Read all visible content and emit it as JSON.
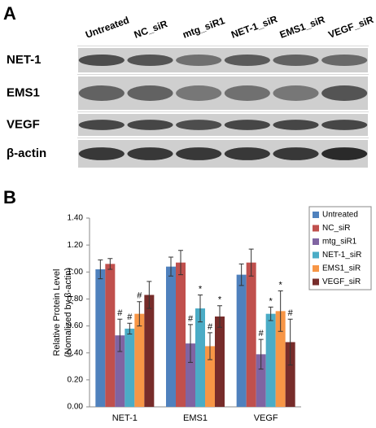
{
  "panel_a": {
    "label": "A",
    "lanes": [
      "Untreated",
      "NC_siR",
      "mtg_siR1",
      "NET-1_siR",
      "EMS1_siR",
      "VEGF_siR"
    ],
    "rows": [
      "NET-1",
      "EMS1",
      "VEGF",
      "β-actin"
    ]
  },
  "chart_data": {
    "type": "bar",
    "panel_label": "B",
    "ylabel": [
      "Relative Protein Level",
      "(Nomalized by β-actin)"
    ],
    "categories": [
      "NET-1",
      "EMS1",
      "VEGF"
    ],
    "ylim": [
      0,
      1.4
    ],
    "yticks": [
      {
        "value": 0,
        "label": "0.00"
      },
      {
        "value": 0.2,
        "label": "0.20"
      },
      {
        "value": 0.4,
        "label": "0.40"
      },
      {
        "value": 0.6,
        "label": "0.60"
      },
      {
        "value": 0.8,
        "label": "0.80"
      },
      {
        "value": 1,
        "label": "1.00"
      },
      {
        "value": 1.2,
        "label": "1.20"
      },
      {
        "value": 1.4,
        "label": "1.40"
      }
    ],
    "legend": "right",
    "series": [
      {
        "name": "Untreated",
        "color": "#4f81bd",
        "values": [
          1.02,
          1.04,
          0.98
        ],
        "errors": [
          0.07,
          0.07,
          0.08
        ],
        "markers": [
          null,
          null,
          null
        ]
      },
      {
        "name": "NC_siR",
        "color": "#c0504d",
        "values": [
          1.06,
          1.07,
          1.07
        ],
        "errors": [
          0.04,
          0.09,
          0.1
        ],
        "markers": [
          null,
          null,
          null
        ]
      },
      {
        "name": "mtg_siR1",
        "color": "#8064a2",
        "values": [
          0.53,
          0.47,
          0.39
        ],
        "errors": [
          0.12,
          0.14,
          0.11
        ],
        "markers": [
          "#",
          "#",
          "#"
        ]
      },
      {
        "name": "NET-1_siR",
        "color": "#4bacc6",
        "values": [
          0.58,
          0.73,
          0.69
        ],
        "errors": [
          0.04,
          0.1,
          0.05
        ],
        "markers": [
          "#",
          "*",
          "*"
        ]
      },
      {
        "name": "EMS1_siR",
        "color": "#f79646",
        "values": [
          0.69,
          0.45,
          0.71
        ],
        "errors": [
          0.09,
          0.1,
          0.15
        ],
        "markers": [
          "#",
          "#",
          "*"
        ]
      },
      {
        "name": "VEGF_siR",
        "color": "#772c2a",
        "values": [
          0.83,
          0.67,
          0.48
        ],
        "errors": [
          0.1,
          0.08,
          0.17
        ],
        "markers": [
          null,
          "*",
          "#"
        ]
      }
    ]
  }
}
